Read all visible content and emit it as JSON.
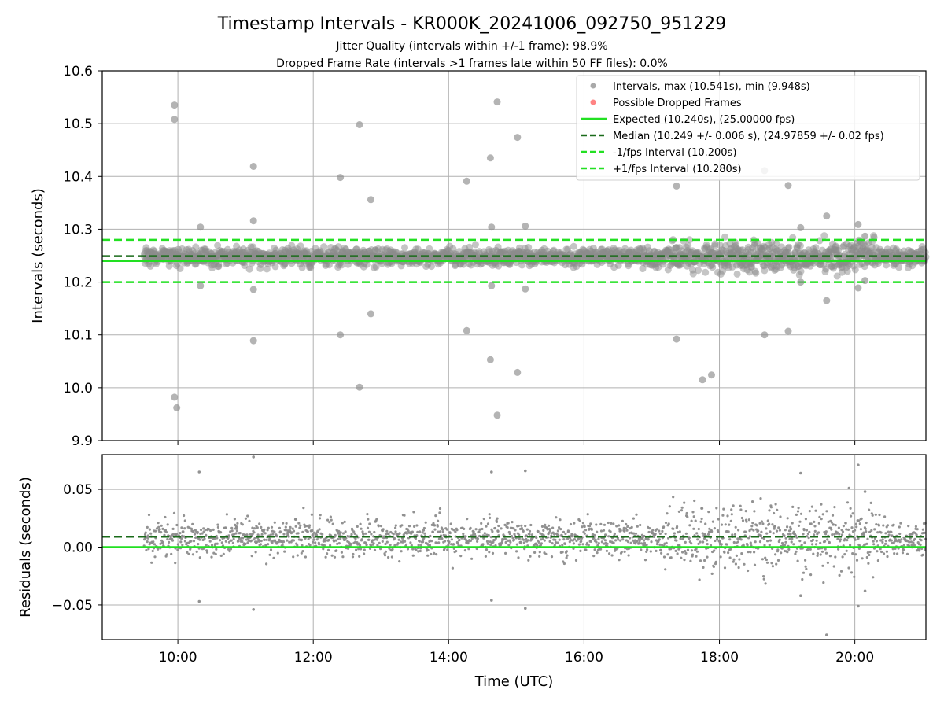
{
  "chart_data": [
    {
      "type": "scatter",
      "title": "Timestamp Intervals - KR000K_20241006_092750_951229",
      "subtitle_lines": [
        "Jitter Quality (intervals within +/-1 frame): 98.9%",
        "Dropped Frame Rate (intervals >1 frames late within 50 FF files): 0.0%"
      ],
      "xlabel": "",
      "ylabel": "Intervals (seconds)",
      "xlim": [
        "08:53",
        "21:03"
      ],
      "ylim": [
        9.9,
        10.6
      ],
      "x_ticks": [
        "10:00",
        "12:00",
        "14:00",
        "16:00",
        "18:00",
        "20:00"
      ],
      "y_ticks": [
        "9.9",
        "10.0",
        "10.1",
        "10.2",
        "10.3",
        "10.4",
        "10.5",
        "10.6"
      ],
      "grid": true,
      "legend_position": "top-right",
      "dense_band": {
        "x_range": [
          "09:30",
          "21:03"
        ],
        "y_center": 10.248,
        "y_spread": 0.008
      },
      "outliers": [
        {
          "x": "09:57",
          "y": 10.535
        },
        {
          "x": "09:57",
          "y": 10.508
        },
        {
          "x": "09:57",
          "y": 9.982
        },
        {
          "x": "09:59",
          "y": 9.962
        },
        {
          "x": "10:20",
          "y": 10.304
        },
        {
          "x": "10:20",
          "y": 10.193
        },
        {
          "x": "11:07",
          "y": 10.419
        },
        {
          "x": "11:07",
          "y": 10.316
        },
        {
          "x": "11:07",
          "y": 10.186
        },
        {
          "x": "11:07",
          "y": 10.089
        },
        {
          "x": "12:24",
          "y": 10.398
        },
        {
          "x": "12:24",
          "y": 10.1
        },
        {
          "x": "12:41",
          "y": 10.498
        },
        {
          "x": "12:41",
          "y": 10.001
        },
        {
          "x": "12:51",
          "y": 10.356
        },
        {
          "x": "12:51",
          "y": 10.14
        },
        {
          "x": "14:16",
          "y": 10.391
        },
        {
          "x": "14:16",
          "y": 10.108
        },
        {
          "x": "14:37",
          "y": 10.435
        },
        {
          "x": "14:38",
          "y": 10.304
        },
        {
          "x": "14:38",
          "y": 10.193
        },
        {
          "x": "14:37",
          "y": 10.053
        },
        {
          "x": "14:43",
          "y": 10.541
        },
        {
          "x": "14:43",
          "y": 9.948
        },
        {
          "x": "15:01",
          "y": 10.474
        },
        {
          "x": "15:01",
          "y": 10.029
        },
        {
          "x": "15:08",
          "y": 10.306
        },
        {
          "x": "15:08",
          "y": 10.187
        },
        {
          "x": "17:22",
          "y": 10.382
        },
        {
          "x": "17:22",
          "y": 10.092
        },
        {
          "x": "17:45",
          "y": 10.015
        },
        {
          "x": "17:53",
          "y": 10.024
        },
        {
          "x": "18:40",
          "y": 10.411
        },
        {
          "x": "18:40",
          "y": 10.1
        },
        {
          "x": "19:01",
          "y": 10.383
        },
        {
          "x": "19:01",
          "y": 10.107
        },
        {
          "x": "19:12",
          "y": 10.303
        },
        {
          "x": "19:12",
          "y": 10.2
        },
        {
          "x": "19:35",
          "y": 10.325
        },
        {
          "x": "19:35",
          "y": 10.165
        },
        {
          "x": "20:03",
          "y": 10.309
        },
        {
          "x": "20:03",
          "y": 10.189
        },
        {
          "x": "20:09",
          "y": 10.287
        },
        {
          "x": "20:09",
          "y": 10.203
        }
      ],
      "reference_lines": [
        {
          "label": "Expected (10.240s), (25.00000 fps)",
          "y": 10.24,
          "style": "solid",
          "color": "#22e022"
        },
        {
          "label": "Median (10.249 +/- 0.006 s), (24.97859 +/- 0.02 fps)",
          "y": 10.249,
          "style": "dashed",
          "color": "#1a6b1a"
        },
        {
          "label": "-1/fps Interval (10.200s)",
          "y": 10.2,
          "style": "dashed",
          "color": "#22e022"
        },
        {
          "label": "+1/fps Interval (10.280s)",
          "y": 10.28,
          "style": "dashed",
          "color": "#22e022"
        }
      ],
      "legend_entries": [
        {
          "label": "Intervals, max (10.541s), min (9.948s)",
          "marker": "circle",
          "color": "#8c8c8c"
        },
        {
          "label": "Possible Dropped Frames",
          "marker": "circle",
          "color": "#ff5a5a"
        },
        {
          "label": "Expected (10.240s), (25.00000 fps)",
          "marker": "line",
          "style": "solid",
          "color": "#22e022"
        },
        {
          "label": "Median (10.249 +/- 0.006 s), (24.97859 +/- 0.02 fps)",
          "marker": "line",
          "style": "dashed",
          "color": "#1a6b1a"
        },
        {
          "label": "-1/fps Interval (10.200s)",
          "marker": "line",
          "style": "dashed",
          "color": "#22e022"
        },
        {
          "label": "+1/fps Interval (10.280s)",
          "marker": "line",
          "style": "dashed",
          "color": "#22e022"
        }
      ]
    },
    {
      "type": "scatter",
      "xlabel": "Time (UTC)",
      "ylabel": "Residuals (seconds)",
      "xlim": [
        "08:53",
        "21:03"
      ],
      "ylim": [
        -0.08,
        0.08
      ],
      "x_ticks": [
        "10:00",
        "12:00",
        "14:00",
        "16:00",
        "18:00",
        "20:00"
      ],
      "y_ticks": [
        "−0.05",
        "0.00",
        "0.05"
      ],
      "grid": true,
      "dense_band": {
        "x_range": [
          "09:30",
          "21:03"
        ],
        "y_center": 0.008,
        "y_spread": 0.008
      },
      "outliers": [
        {
          "x": "10:19",
          "y": 0.065
        },
        {
          "x": "10:19",
          "y": -0.047
        },
        {
          "x": "11:07",
          "y": 0.078
        },
        {
          "x": "11:07",
          "y": -0.054
        },
        {
          "x": "14:38",
          "y": 0.065
        },
        {
          "x": "14:38",
          "y": -0.046
        },
        {
          "x": "15:08",
          "y": 0.066
        },
        {
          "x": "15:08",
          "y": -0.053
        },
        {
          "x": "19:12",
          "y": 0.064
        },
        {
          "x": "19:12",
          "y": -0.042
        },
        {
          "x": "19:35",
          "y": -0.076
        },
        {
          "x": "20:03",
          "y": 0.071
        },
        {
          "x": "20:03",
          "y": -0.051
        },
        {
          "x": "20:09",
          "y": 0.048
        },
        {
          "x": "20:09",
          "y": -0.038
        }
      ],
      "reference_lines": [
        {
          "y": 0.0,
          "style": "solid",
          "color": "#22e022"
        },
        {
          "y": 0.009,
          "style": "dashed",
          "color": "#1a6b1a"
        }
      ]
    }
  ]
}
